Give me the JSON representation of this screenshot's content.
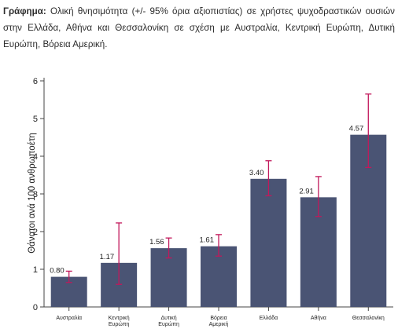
{
  "caption": {
    "label": "Γράφημα:",
    "text": "Ολική θνησιμότητα (+/- 95% όρια αξιοπιστίας) σε χρήστες ψυχοδραστικών ουσιών στην Ελλάδα, Αθήνα και Θεσσαλονίκη σε σχέση με Αυστραλία, Κεντρική Ευρώπη, Δυτική Ευρώπη, Βόρεια Αμερική."
  },
  "chart_data": {
    "type": "bar",
    "ylabel": "Θάνατοι ανά 100 ανθρωποέτη",
    "ylim": [
      0,
      6
    ],
    "yticks": [
      0,
      1,
      2,
      3,
      4,
      5,
      6
    ],
    "grid": false,
    "categories": [
      [
        "Αυστραλία"
      ],
      [
        "Κεντρική",
        "Ευρώπη"
      ],
      [
        "Δυτική",
        "Ευρώπη"
      ],
      [
        "Βόρεια",
        "Αμερική"
      ],
      [
        "Ελλάδα"
      ],
      [
        "Αθήνα"
      ],
      [
        "Θεσσαλονίκη"
      ]
    ],
    "values": [
      0.8,
      1.17,
      1.56,
      1.61,
      3.4,
      2.91,
      4.57
    ],
    "labels": [
      "0.80",
      "1.17",
      "1.56",
      "1.61",
      "3.40",
      "2.91",
      "4.57"
    ],
    "error_low": [
      0.65,
      0.6,
      1.3,
      1.35,
      2.95,
      2.4,
      3.7
    ],
    "error_high": [
      0.95,
      2.23,
      1.83,
      1.92,
      3.88,
      3.46,
      5.65
    ],
    "colors": {
      "bar": "#4a5474",
      "error": "#c2185b",
      "axis": "#444444"
    }
  }
}
